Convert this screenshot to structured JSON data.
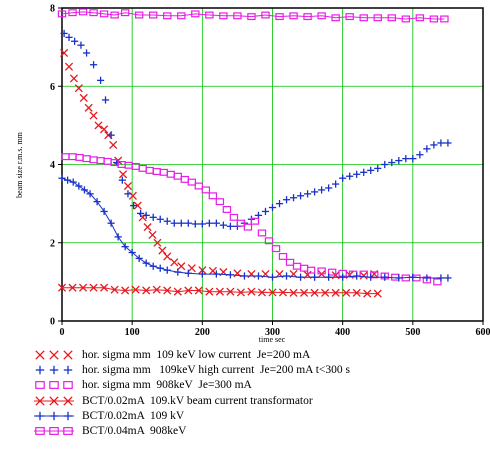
{
  "chart_data": {
    "type": "scatter",
    "xlabel": "time sec",
    "ylabel": "beam size r.m.s. mm",
    "xlim": [
      0,
      600
    ],
    "ylim": [
      0,
      8
    ],
    "xticks": [
      "0",
      "100",
      "200",
      "300",
      "400",
      "500",
      "600"
    ],
    "yticks": [
      "0",
      "2",
      "4",
      "6",
      "8"
    ],
    "grid": true,
    "legend_position": "bottom",
    "series": [
      {
        "name": "hor. sigma mm  109 keV low current  Je=200 mA",
        "marker": "x",
        "line": false,
        "color": "#e8181e",
        "x": [
          3,
          10,
          17,
          24,
          31,
          38,
          45,
          52,
          60,
          66,
          73,
          80,
          87,
          94,
          101,
          108,
          115,
          122,
          129,
          136,
          143,
          150,
          160,
          170,
          185,
          200,
          215,
          230,
          250,
          270,
          290,
          310,
          330,
          350,
          370,
          390,
          410,
          430,
          445
        ],
        "y": [
          6.85,
          6.5,
          6.2,
          5.95,
          5.7,
          5.45,
          5.25,
          5.0,
          4.9,
          4.75,
          4.5,
          4.1,
          3.75,
          3.45,
          3.2,
          2.95,
          2.65,
          2.4,
          2.2,
          2.0,
          1.8,
          1.65,
          1.5,
          1.4,
          1.35,
          1.3,
          1.28,
          1.25,
          1.22,
          1.2,
          1.2,
          1.2,
          1.2,
          1.18,
          1.2,
          1.17,
          1.18,
          1.16,
          1.2
        ]
      },
      {
        "name": "hor. sigma mm   109keV high current  Je=200 mA t<300 s",
        "marker": "+",
        "line": false,
        "color": "#1832c8",
        "x": [
          3,
          10,
          18,
          27,
          35,
          45,
          55,
          62,
          70,
          78,
          86,
          94,
          102,
          112,
          120,
          130,
          140,
          150,
          160,
          170,
          180,
          190,
          200,
          210,
          220,
          230,
          240,
          250,
          260,
          270,
          280,
          290,
          300,
          310,
          320,
          330,
          340,
          350,
          360,
          370,
          380,
          390,
          400,
          410,
          420,
          430,
          440,
          450,
          460,
          470,
          480,
          490,
          500,
          510,
          520,
          530,
          540,
          550
        ],
        "y": [
          7.35,
          7.25,
          7.15,
          7.05,
          6.85,
          6.55,
          6.15,
          5.65,
          4.75,
          4.05,
          3.6,
          3.25,
          2.95,
          2.75,
          2.7,
          2.65,
          2.6,
          2.55,
          2.5,
          2.5,
          2.5,
          2.48,
          2.48,
          2.5,
          2.5,
          2.45,
          2.42,
          2.42,
          2.5,
          2.6,
          2.7,
          2.8,
          2.9,
          3.0,
          3.1,
          3.15,
          3.2,
          3.25,
          3.3,
          3.35,
          3.4,
          3.5,
          3.65,
          3.7,
          3.75,
          3.8,
          3.85,
          3.9,
          4.0,
          4.05,
          4.1,
          4.15,
          4.15,
          4.25,
          4.4,
          4.5,
          4.55,
          4.55
        ]
      },
      {
        "name": "hor. sigma mm  908keV  Je=300 mA",
        "marker": "square",
        "line": false,
        "color": "#e61ee6",
        "x": [
          5,
          15,
          25,
          35,
          45,
          55,
          65,
          75,
          85,
          95,
          105,
          115,
          125,
          135,
          145,
          155,
          165,
          175,
          185,
          195,
          205,
          215,
          225,
          235,
          245,
          255,
          265,
          275,
          285,
          295,
          305,
          315,
          325,
          335,
          345,
          355,
          370,
          385,
          400,
          415,
          430,
          445,
          460,
          475,
          490,
          505,
          520,
          535
        ],
        "y": [
          4.2,
          4.2,
          4.18,
          4.15,
          4.12,
          4.1,
          4.08,
          4.05,
          4.0,
          3.98,
          3.95,
          3.9,
          3.85,
          3.82,
          3.8,
          3.75,
          3.7,
          3.62,
          3.55,
          3.45,
          3.35,
          3.2,
          3.05,
          2.85,
          2.65,
          2.5,
          2.4,
          2.55,
          2.25,
          2.05,
          1.85,
          1.65,
          1.5,
          1.4,
          1.35,
          1.3,
          1.28,
          1.25,
          1.22,
          1.2,
          1.2,
          1.18,
          1.15,
          1.12,
          1.1,
          1.1,
          1.05,
          1.0
        ]
      },
      {
        "name": "BCT/0.02mA  109.kV beam current transformator",
        "marker": "x",
        "line": true,
        "color": "#e8181e",
        "x": [
          0,
          15,
          30,
          45,
          60,
          75,
          90,
          105,
          120,
          135,
          150,
          165,
          180,
          195,
          210,
          225,
          240,
          255,
          270,
          285,
          300,
          315,
          330,
          345,
          360,
          375,
          390,
          405,
          420,
          435,
          450
        ],
        "y": [
          0.85,
          0.85,
          0.85,
          0.85,
          0.85,
          0.8,
          0.78,
          0.8,
          0.78,
          0.8,
          0.78,
          0.75,
          0.78,
          0.78,
          0.75,
          0.75,
          0.75,
          0.73,
          0.75,
          0.73,
          0.73,
          0.73,
          0.72,
          0.72,
          0.72,
          0.72,
          0.72,
          0.72,
          0.72,
          0.7,
          0.7
        ]
      },
      {
        "name": "BCT/0.02mA  109 kV",
        "marker": "+",
        "line": true,
        "color": "#1832c8",
        "x": [
          0,
          8,
          16,
          24,
          32,
          40,
          50,
          60,
          70,
          80,
          90,
          100,
          110,
          120,
          130,
          140,
          150,
          165,
          180,
          200,
          220,
          240,
          260,
          280,
          300,
          320,
          340,
          360,
          380,
          400,
          420,
          440,
          460,
          480,
          500,
          520,
          540,
          550
        ],
        "y": [
          3.65,
          3.6,
          3.55,
          3.45,
          3.35,
          3.25,
          3.05,
          2.8,
          2.5,
          2.15,
          1.9,
          1.75,
          1.6,
          1.48,
          1.4,
          1.35,
          1.3,
          1.25,
          1.22,
          1.2,
          1.2,
          1.18,
          1.15,
          1.15,
          1.12,
          1.15,
          1.12,
          1.12,
          1.12,
          1.12,
          1.15,
          1.12,
          1.12,
          1.1,
          1.12,
          1.1,
          1.1,
          1.1
        ]
      },
      {
        "name": "BCT/0.04mA  908keV",
        "marker": "square",
        "line": true,
        "color": "#e61ee6",
        "x": [
          0,
          15,
          30,
          45,
          60,
          75,
          90,
          110,
          130,
          150,
          170,
          190,
          210,
          230,
          250,
          270,
          290,
          310,
          330,
          350,
          370,
          390,
          410,
          430,
          450,
          470,
          490,
          510,
          530,
          545
        ],
        "y": [
          7.85,
          7.88,
          7.9,
          7.88,
          7.85,
          7.82,
          7.88,
          7.82,
          7.82,
          7.8,
          7.8,
          7.85,
          7.82,
          7.8,
          7.8,
          7.78,
          7.82,
          7.78,
          7.8,
          7.78,
          7.8,
          7.75,
          7.78,
          7.75,
          7.75,
          7.75,
          7.72,
          7.75,
          7.72,
          7.72
        ]
      }
    ]
  }
}
